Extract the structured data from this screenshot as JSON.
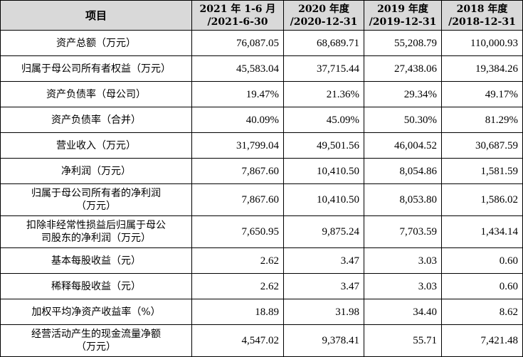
{
  "table": {
    "headers": [
      {
        "line1": "项目",
        "line2": ""
      },
      {
        "line1": "2021 年 1-6 月",
        "line2": "/2021-6-30"
      },
      {
        "line1": "2020 年度",
        "line2": "/2020-12-31"
      },
      {
        "line1": "2019 年度",
        "line2": "/2019-12-31"
      },
      {
        "line1": "2018 年度",
        "line2": "/2018-12-31"
      }
    ],
    "rows": [
      {
        "label": "资产总额（万元）",
        "values": [
          "76,087.05",
          "68,689.71",
          "55,208.79",
          "110,000.93"
        ]
      },
      {
        "label": "归属于母公司所有者权益（万元）",
        "values": [
          "45,583.04",
          "37,715.44",
          "27,438.06",
          "19,384.26"
        ]
      },
      {
        "label": "资产负债率（母公司）",
        "values": [
          "19.47%",
          "21.36%",
          "29.34%",
          "49.17%"
        ]
      },
      {
        "label": "资产负债率（合并）",
        "values": [
          "40.09%",
          "45.09%",
          "50.30%",
          "81.29%"
        ]
      },
      {
        "label": "营业收入（万元）",
        "values": [
          "31,799.04",
          "49,501.56",
          "46,004.52",
          "30,687.59"
        ]
      },
      {
        "label": "净利润（万元）",
        "values": [
          "7,867.60",
          "10,410.50",
          "8,054.86",
          "1,581.59"
        ]
      },
      {
        "label_line1": "归属于母公司所有者的净利润",
        "label_line2": "（万元）",
        "values": [
          "7,867.60",
          "10,410.50",
          "8,053.80",
          "1,586.02"
        ]
      },
      {
        "label_line1": "扣除非经常性损益后归属于母公",
        "label_line2": "司股东的净利润（万元）",
        "values": [
          "7,650.95",
          "9,875.24",
          "7,703.59",
          "1,434.14"
        ]
      },
      {
        "label": "基本每股收益（元）",
        "values": [
          "2.62",
          "3.47",
          "3.03",
          "0.60"
        ]
      },
      {
        "label": "稀释每股收益（元）",
        "values": [
          "2.62",
          "3.47",
          "3.03",
          "0.60"
        ]
      },
      {
        "label": "加权平均净资产收益率（%）",
        "values": [
          "18.89",
          "31.98",
          "34.40",
          "8.62"
        ]
      },
      {
        "label_line1": "经营活动产生的现金流量净额",
        "label_line2": "（万元）",
        "values": [
          "4,547.02",
          "9,378.41",
          "55.71",
          "7,421.48"
        ]
      }
    ]
  }
}
